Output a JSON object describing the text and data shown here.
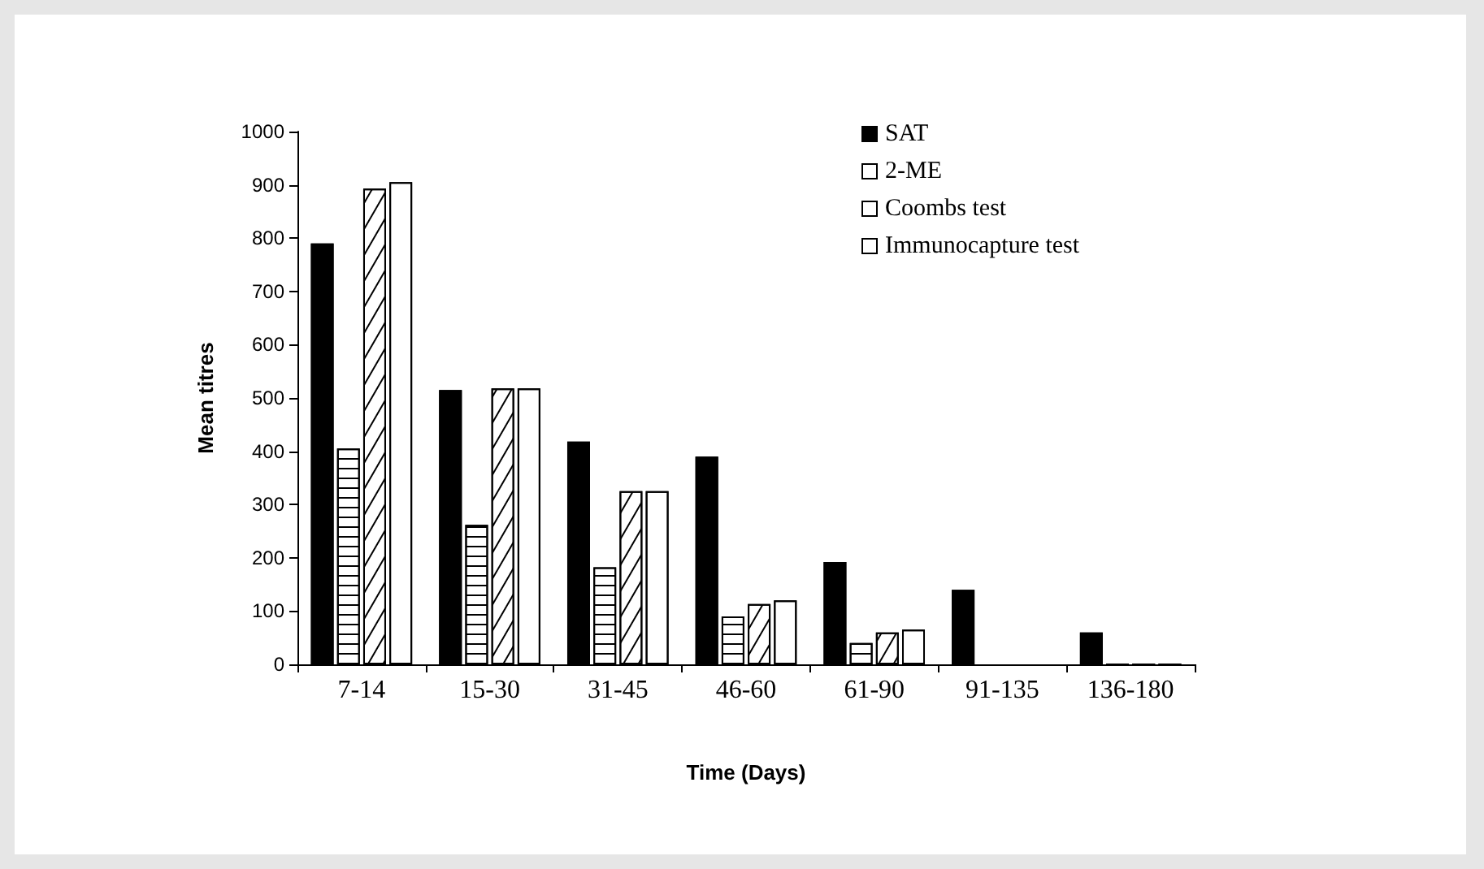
{
  "chart_data": {
    "type": "bar",
    "xlabel": "Time (Days)",
    "ylabel": "Mean titres",
    "categories": [
      "7-14",
      "15-30",
      "31-45",
      "46-60",
      "61-90",
      "91-135",
      "136-180"
    ],
    "series": [
      {
        "name": "SAT",
        "color": "#000000",
        "values": [
          790,
          515,
          418,
          390,
          192,
          140,
          60
        ]
      },
      {
        "name": "2-ME",
        "color": "#ffffff",
        "values": [
          405,
          262,
          182,
          90,
          40,
          null,
          0
        ]
      },
      {
        "name": "Coombs test",
        "color": "#ffffff",
        "values": [
          893,
          518,
          325,
          113,
          60,
          null,
          0
        ]
      },
      {
        "name": "Immunocapture test",
        "color": "#ffffff",
        "values": [
          905,
          518,
          325,
          120,
          65,
          null,
          0
        ]
      }
    ],
    "ylim": [
      0,
      1000
    ],
    "yticks": [
      0,
      100,
      200,
      300,
      400,
      500,
      600,
      700,
      800,
      900,
      1000
    ],
    "grid": false,
    "legend": "top right"
  }
}
